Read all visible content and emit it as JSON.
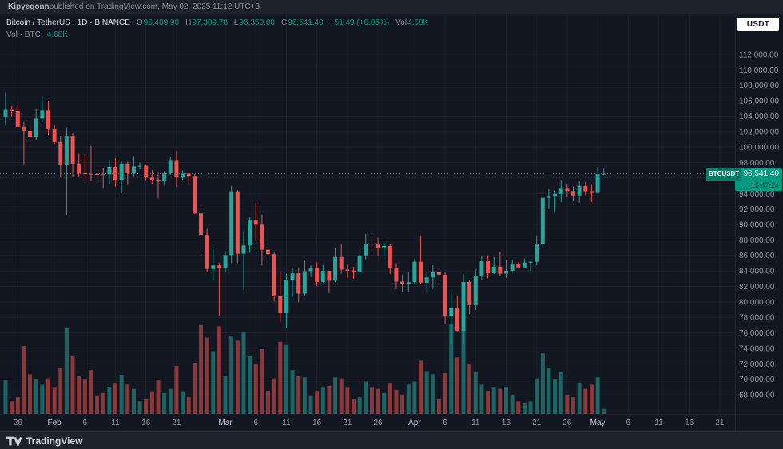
{
  "attribution": {
    "author": "Kipyegonn",
    "rest": " published on TradingView.com, May 02, 2025 11:12 UTC+3"
  },
  "legend": {
    "title_full": "Bitcoin / TetherUS · 1D · BINANCE",
    "o_label": "O",
    "o": "96,489.90",
    "h_label": "H",
    "h": "97,309.78",
    "l_label": "L",
    "l": "96,350.00",
    "c_label": "C",
    "c": "96,541.40",
    "change": "+51.49 (+0.05%)",
    "vol_label": "Vol",
    "vol": "4.68K",
    "row2_label": "Vol · BTC",
    "row2_value": "4.68K"
  },
  "currency_button": "USDT",
  "price_badge": {
    "symbol": "BTCUSDT",
    "price": "96,541.40",
    "countdown": "15:47:24"
  },
  "footer": {
    "brand": "TradingView"
  },
  "colors": {
    "bg": "#131722",
    "panel": "#1e222d",
    "up": "#26a69a",
    "down": "#ef5350",
    "green_text": "#089981",
    "axis_text": "#9298a3",
    "axis_month_text": "#c8ccd4"
  },
  "chart_data": {
    "type": "candlestick+volume",
    "title": "Bitcoin / TetherUS",
    "symbol": "BTCUSDT",
    "exchange": "BINANCE",
    "interval": "1D",
    "last_price": 96541.4,
    "legend_ohlc": {
      "open": 96489.9,
      "high": 97309.78,
      "low": 96350.0,
      "close": 96541.4,
      "change": 51.49,
      "change_pct": 0.05,
      "volume_k": 4.68
    },
    "price_axis_range": [
      68000,
      112000
    ],
    "price_axis_step": 2000,
    "grid": true,
    "price_labels": [
      "112,000.00",
      "110,000.00",
      "108,000.00",
      "106,000.00",
      "104,000.00",
      "102,000.00",
      "100,000.00",
      "98,000.00",
      "96,000.00",
      "94,000.00",
      "92,000.00",
      "90,000.00",
      "88,000.00",
      "86,000.00",
      "84,000.00",
      "82,000.00",
      "80,000.00",
      "78,000.00",
      "76,000.00",
      "74,000.00",
      "72,000.00",
      "70,000.00",
      "68,000.00"
    ],
    "time_axis": [
      {
        "label": "26",
        "i": 2
      },
      {
        "label": "Feb",
        "i": 8,
        "month": true
      },
      {
        "label": "6",
        "i": 13
      },
      {
        "label": "11",
        "i": 18
      },
      {
        "label": "16",
        "i": 23
      },
      {
        "label": "21",
        "i": 28
      },
      {
        "label": "Mar",
        "i": 36,
        "month": true
      },
      {
        "label": "6",
        "i": 41
      },
      {
        "label": "11",
        "i": 46
      },
      {
        "label": "16",
        "i": 51
      },
      {
        "label": "21",
        "i": 56
      },
      {
        "label": "26",
        "i": 61
      },
      {
        "label": "Apr",
        "i": 67,
        "month": true
      },
      {
        "label": "6",
        "i": 72
      },
      {
        "label": "11",
        "i": 77
      },
      {
        "label": "16",
        "i": 82
      },
      {
        "label": "21",
        "i": 87
      },
      {
        "label": "26",
        "i": 92
      },
      {
        "label": "May",
        "i": 97,
        "month": true
      },
      {
        "label": "6",
        "i": 102
      },
      {
        "label": "11",
        "i": 107
      },
      {
        "label": "16",
        "i": 112
      },
      {
        "label": "21",
        "i": 117
      }
    ],
    "candles_format": [
      "open",
      "high",
      "low",
      "close",
      "volume_kBTC"
    ],
    "candles": [
      [
        103960,
        107120,
        102750,
        104820,
        32
      ],
      [
        104820,
        105320,
        104030,
        104680,
        12
      ],
      [
        104680,
        105450,
        102500,
        102620,
        16
      ],
      [
        102620,
        103260,
        97780,
        102080,
        65
      ],
      [
        102080,
        103740,
        100280,
        101330,
        38
      ],
      [
        101330,
        104870,
        100950,
        103700,
        33
      ],
      [
        103700,
        106460,
        103230,
        104730,
        28
      ],
      [
        104730,
        106010,
        101560,
        102410,
        34
      ],
      [
        102410,
        102790,
        100410,
        100660,
        26
      ],
      [
        100660,
        101460,
        96150,
        97690,
        44
      ],
      [
        97690,
        102540,
        91240,
        101440,
        82
      ],
      [
        101440,
        101740,
        96150,
        97870,
        55
      ],
      [
        97870,
        99150,
        96170,
        96615,
        36
      ],
      [
        96615,
        99120,
        95680,
        96550,
        33
      ],
      [
        96550,
        100140,
        95620,
        96500,
        42
      ],
      [
        96500,
        96900,
        95670,
        96480,
        17
      ],
      [
        96480,
        97330,
        94710,
        96470,
        20
      ],
      [
        96470,
        98350,
        95260,
        97440,
        26
      ],
      [
        97440,
        98590,
        94880,
        95780,
        29
      ],
      [
        95780,
        98120,
        94090,
        97870,
        37
      ],
      [
        97870,
        98080,
        95220,
        96610,
        28
      ],
      [
        96610,
        98840,
        96250,
        97500,
        24
      ],
      [
        97500,
        97990,
        97240,
        97570,
        12
      ],
      [
        97570,
        97700,
        95790,
        96180,
        14
      ],
      [
        96180,
        97050,
        95230,
        95780,
        21
      ],
      [
        95780,
        96750,
        93390,
        95660,
        32
      ],
      [
        95660,
        96880,
        95030,
        96640,
        20
      ],
      [
        96640,
        98780,
        96430,
        98330,
        24
      ],
      [
        98330,
        99480,
        94870,
        96180,
        46
      ],
      [
        96180,
        96990,
        95770,
        96580,
        21
      ],
      [
        96580,
        96670,
        95240,
        96270,
        16
      ],
      [
        96270,
        96500,
        91350,
        91420,
        49
      ],
      [
        91420,
        92540,
        86050,
        88640,
        85
      ],
      [
        88640,
        89420,
        83820,
        84250,
        73
      ],
      [
        84250,
        87080,
        82700,
        84700,
        60
      ],
      [
        84700,
        85070,
        78250,
        84370,
        84
      ],
      [
        84370,
        86560,
        83800,
        86030,
        36
      ],
      [
        86030,
        95000,
        85070,
        94270,
        75
      ],
      [
        94270,
        94420,
        85080,
        86220,
        70
      ],
      [
        86220,
        88960,
        81500,
        87280,
        78
      ],
      [
        87280,
        91000,
        86330,
        90600,
        55
      ],
      [
        90600,
        92800,
        87860,
        89960,
        48
      ],
      [
        89960,
        91280,
        84700,
        86740,
        62
      ],
      [
        86740,
        86900,
        85220,
        86150,
        22
      ],
      [
        86150,
        86500,
        80050,
        80700,
        34
      ],
      [
        80700,
        83960,
        77420,
        78530,
        69
      ],
      [
        78530,
        83610,
        76600,
        82860,
        66
      ],
      [
        82860,
        84360,
        80630,
        83670,
        42
      ],
      [
        83670,
        84340,
        79940,
        81060,
        36
      ],
      [
        81060,
        85310,
        80820,
        83970,
        35
      ],
      [
        83970,
        84680,
        83220,
        84340,
        17
      ],
      [
        84340,
        85120,
        82000,
        82580,
        22
      ],
      [
        82580,
        84760,
        82440,
        84010,
        25
      ],
      [
        84010,
        84020,
        81130,
        82720,
        27
      ],
      [
        82720,
        87020,
        82550,
        85790,
        35
      ],
      [
        85790,
        87450,
        83650,
        84170,
        34
      ],
      [
        84170,
        84790,
        83120,
        84040,
        25
      ],
      [
        84040,
        84520,
        83000,
        83820,
        14
      ],
      [
        83820,
        86100,
        83790,
        85990,
        16
      ],
      [
        85990,
        88770,
        85500,
        87500,
        31
      ],
      [
        87500,
        88540,
        86320,
        87470,
        25
      ],
      [
        87470,
        88290,
        85860,
        86900,
        24
      ],
      [
        86900,
        87790,
        85840,
        87220,
        20
      ],
      [
        87220,
        87490,
        83580,
        84370,
        29
      ],
      [
        84370,
        85000,
        81640,
        82620,
        23
      ],
      [
        82620,
        83500,
        81280,
        82330,
        18
      ],
      [
        82330,
        83900,
        81220,
        82550,
        28
      ],
      [
        82550,
        85550,
        82410,
        85170,
        31
      ],
      [
        85170,
        88500,
        82280,
        82480,
        51
      ],
      [
        82480,
        83900,
        81200,
        83150,
        41
      ],
      [
        83150,
        84720,
        81660,
        83840,
        38
      ],
      [
        83840,
        84250,
        82350,
        83500,
        14
      ],
      [
        83500,
        83780,
        77100,
        78210,
        39
      ],
      [
        78210,
        81240,
        74440,
        79160,
        86
      ],
      [
        79160,
        80820,
        76200,
        76270,
        54
      ],
      [
        76270,
        83560,
        74600,
        82570,
        88
      ],
      [
        82570,
        82740,
        78450,
        79590,
        48
      ],
      [
        79590,
        84250,
        78940,
        83400,
        40
      ],
      [
        83400,
        85860,
        82780,
        85250,
        28
      ],
      [
        85250,
        86010,
        83030,
        83680,
        22
      ],
      [
        83680,
        85780,
        83610,
        84540,
        26
      ],
      [
        84540,
        86450,
        83370,
        83640,
        24
      ],
      [
        83640,
        85430,
        83100,
        84030,
        26
      ],
      [
        84030,
        85450,
        83770,
        84950,
        18
      ],
      [
        84950,
        85140,
        84300,
        84450,
        12
      ],
      [
        84450,
        85600,
        84320,
        85060,
        10
      ],
      [
        85060,
        85300,
        83980,
        85170,
        12
      ],
      [
        85170,
        88470,
        84710,
        87520,
        34
      ],
      [
        87520,
        93820,
        87080,
        93440,
        58
      ],
      [
        93440,
        94540,
        91960,
        93700,
        44
      ],
      [
        93700,
        94350,
        91700,
        93940,
        33
      ],
      [
        93940,
        95770,
        92900,
        94720,
        40
      ],
      [
        94720,
        95250,
        93630,
        94310,
        18
      ],
      [
        94310,
        94900,
        93060,
        93750,
        16
      ],
      [
        93750,
        95600,
        92830,
        94980,
        30
      ],
      [
        94980,
        95490,
        93790,
        94280,
        24
      ],
      [
        94280,
        95200,
        92910,
        94180,
        28
      ],
      [
        94180,
        97440,
        94150,
        96490,
        35
      ],
      [
        96489.9,
        97309.78,
        96350,
        96541.4,
        4.68
      ]
    ]
  }
}
